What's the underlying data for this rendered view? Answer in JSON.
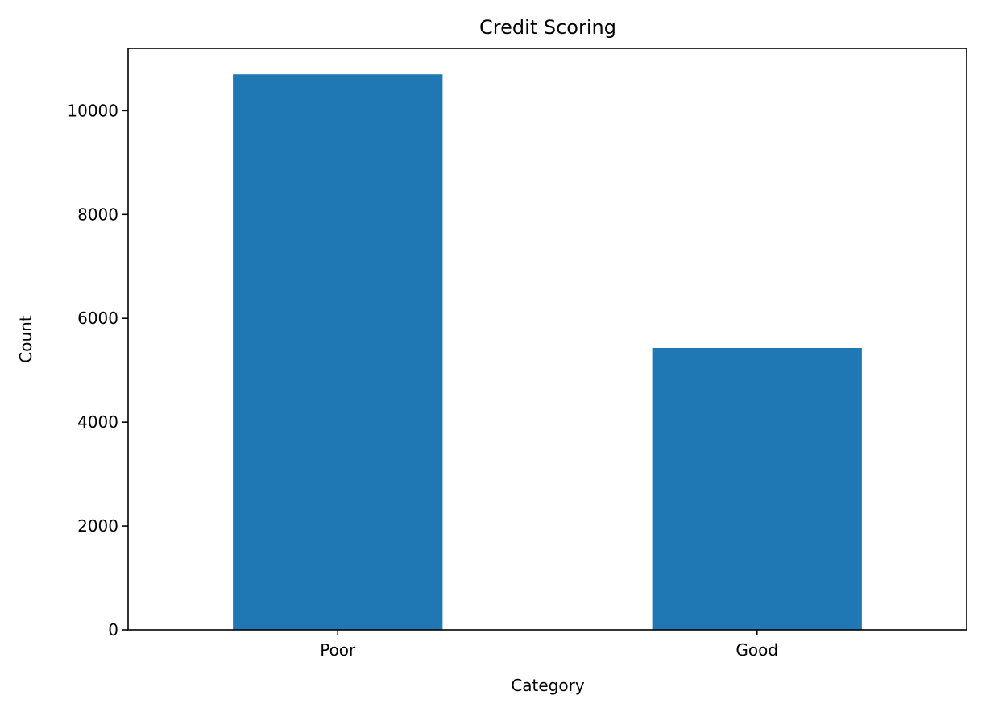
{
  "chart_data": {
    "type": "bar",
    "title": "Credit Scoring",
    "xlabel": "Category",
    "ylabel": "Count",
    "categories": [
      "Poor",
      "Good"
    ],
    "values": [
      10700,
      5430
    ],
    "ylim": [
      0,
      11200
    ],
    "yticks": [
      0,
      2000,
      4000,
      6000,
      8000,
      10000
    ],
    "bar_color": "#1f77b4",
    "grid": false,
    "legend": "none"
  }
}
